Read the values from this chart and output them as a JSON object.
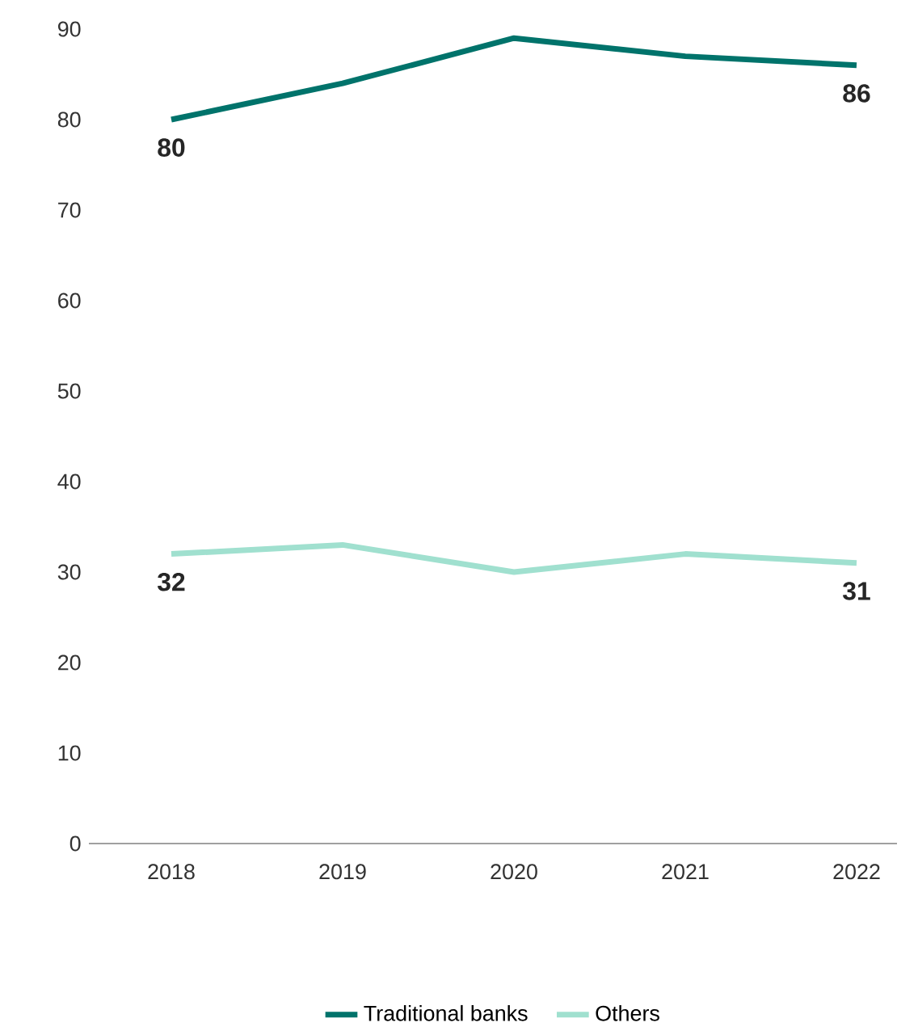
{
  "chart_data": {
    "type": "line",
    "categories": [
      "2018",
      "2019",
      "2020",
      "2021",
      "2022"
    ],
    "series": [
      {
        "name": "Traditional banks",
        "color": "#00736b",
        "values": [
          80,
          84,
          89,
          87,
          86
        ],
        "value_labels": [
          "80",
          null,
          null,
          null,
          "86"
        ]
      },
      {
        "name": "Others",
        "color": "#a0e0cf",
        "values": [
          32,
          33,
          30,
          32,
          31
        ],
        "value_labels": [
          "32",
          null,
          null,
          null,
          "31"
        ]
      }
    ],
    "ylim": [
      0,
      90
    ],
    "yticks": [
      0,
      10,
      20,
      30,
      40,
      50,
      60,
      70,
      80,
      90
    ],
    "grid": false,
    "legend": "bottom",
    "marker": "none",
    "line_style": "solid"
  }
}
